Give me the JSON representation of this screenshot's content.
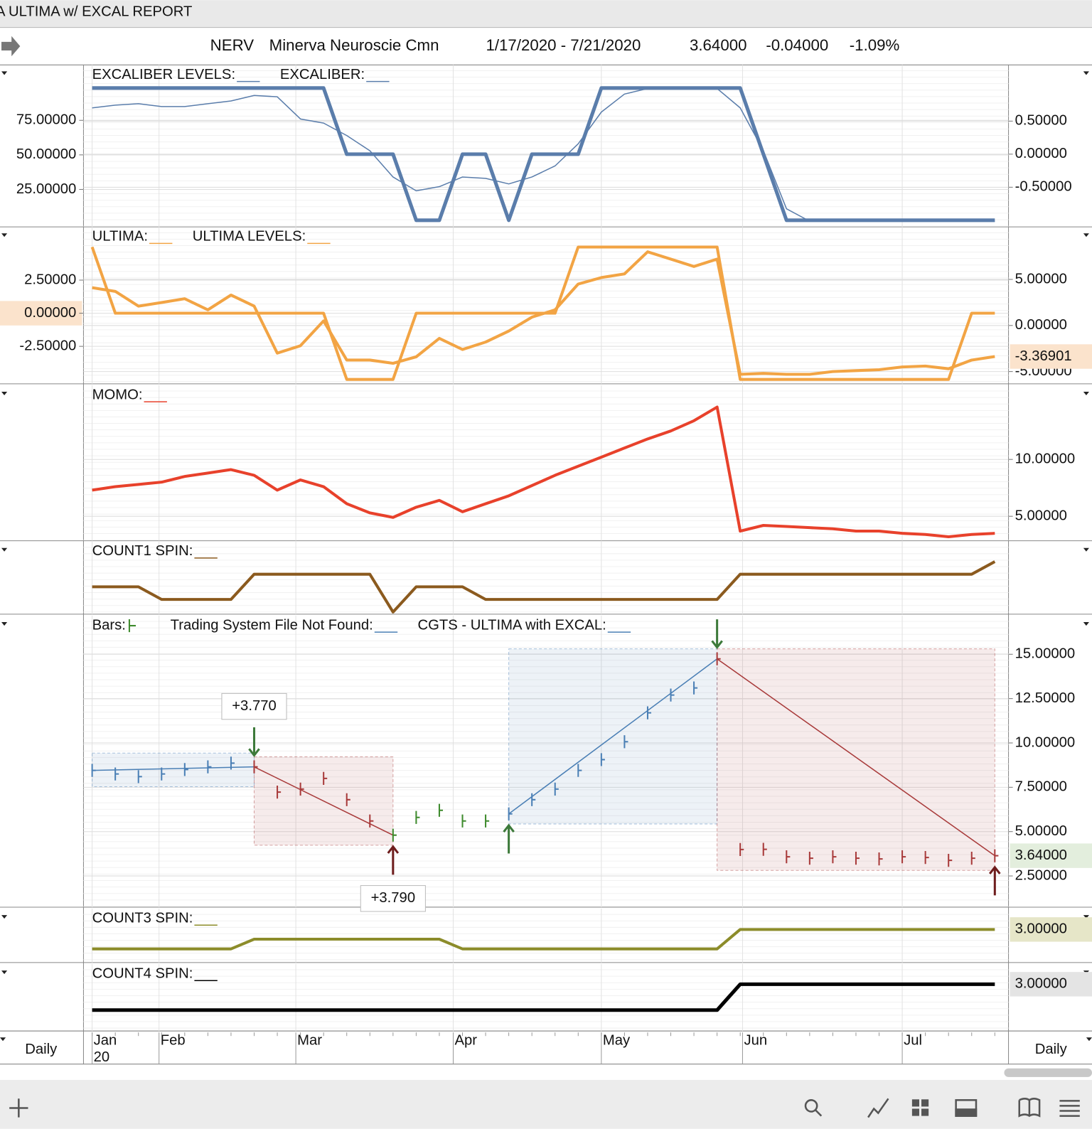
{
  "window": {
    "title": "A ULTIMA w/ EXCAL REPORT"
  },
  "header": {
    "symbol": "NERV",
    "name": "Minerva Neuroscie Cmn",
    "range": "1/17/2020 - 7/21/2020",
    "last": "3.64000",
    "change": "-0.04000",
    "pct_change": "-1.09%"
  },
  "x_axis": {
    "xlim": [
      0,
      39
    ],
    "ticks": [
      {
        "value": 0,
        "label": "Jan"
      },
      {
        "value": 2.89,
        "label": "Feb"
      },
      {
        "value": 8.8,
        "label": "Mar"
      },
      {
        "value": 15.6,
        "label": "Apr"
      },
      {
        "value": 22,
        "label": "May"
      },
      {
        "value": 28.1,
        "label": "Jun"
      },
      {
        "value": 35,
        "label": "Jul"
      }
    ],
    "year_label": "20",
    "period": "Daily"
  },
  "chart_data": [
    {
      "type": "line",
      "ylim": [
        -2.1,
        115.1
      ],
      "yticks": [
        {
          "value": 75,
          "label": "75.00000"
        },
        {
          "value": 50,
          "label": "50.00000"
        },
        {
          "value": 25,
          "label": "25.00000"
        }
      ],
      "y2lim": [
        -1.1,
        1.35
      ],
      "y2ticks": [
        {
          "value": 0.5,
          "label": "0.50000"
        },
        {
          "value": 0,
          "label": "0.00000"
        },
        {
          "value": -0.5,
          "label": "-0.50000"
        }
      ],
      "series": [
        {
          "name": "EXCALIBER LEVELS:",
          "color": "#5a7dab",
          "width": 5,
          "axis": "y2",
          "values": [
            1,
            1,
            1,
            1,
            1,
            1,
            1,
            1,
            1,
            1,
            1,
            0,
            0,
            0,
            -1,
            -1,
            0,
            0,
            -1,
            0,
            0,
            0,
            1,
            1,
            1,
            1,
            1,
            1,
            1,
            0,
            -1,
            -1,
            -1,
            -1,
            -1,
            -1,
            -1,
            -1,
            -1,
            -1
          ]
        },
        {
          "name": "EXCALIBER:",
          "color": "#5a7dab",
          "width": 1.5,
          "axis": "y",
          "values": [
            84,
            86,
            87,
            85,
            85,
            87,
            89,
            93,
            92,
            76,
            73,
            64,
            53,
            34,
            24,
            27,
            34,
            33,
            29,
            34,
            42,
            58,
            81,
            94,
            98,
            98,
            98,
            98,
            84,
            53,
            11,
            2,
            2,
            2,
            2,
            2,
            2,
            2,
            2,
            2
          ]
        }
      ]
    },
    {
      "type": "line",
      "ylim": [
        -5.33,
        6.52
      ],
      "yticks": [
        {
          "value": 2.5,
          "label": "2.50000"
        },
        {
          "value": 0,
          "label": "0.00000"
        },
        {
          "value": -2.5,
          "label": "-2.50000"
        }
      ],
      "ytick_highlight": {
        "index": 1,
        "color": "#fbe3cc"
      },
      "y2lim": [
        -6.33,
        10.7
      ],
      "y2ticks": [
        {
          "value": 5,
          "label": "5.00000"
        },
        {
          "value": 0,
          "label": "0.00000"
        },
        {
          "value": -5,
          "label": "-5.00000"
        }
      ],
      "series": [
        {
          "name": "ULTIMA:",
          "color": "#f2a444",
          "width": 4,
          "axis": "y2",
          "badge": "#fbe3cc",
          "values": [
            4.1,
            3.7,
            2.1,
            2.5,
            2.9,
            1.7,
            3.3,
            2.1,
            -3.0,
            -2.2,
            0.5,
            -3.75,
            -3.75,
            -4.1,
            -3.4,
            -1.4,
            -2.6,
            -1.8,
            -0.6,
            0.9,
            1.7,
            4.5,
            5.2,
            5.6,
            8.0,
            7.2,
            6.4,
            7.2,
            -5.3,
            -5.2,
            -5.3,
            -5.3,
            -5.0,
            -4.9,
            -4.8,
            -4.5,
            -4.4,
            -4.7,
            -3.75,
            -3.36901
          ]
        },
        {
          "name": "ULTIMA LEVELS:",
          "color": "#f2a444",
          "width": 4,
          "axis": "y",
          "values": [
            5,
            0,
            0,
            0,
            0,
            0,
            0,
            0,
            0,
            0,
            0,
            -5,
            -5,
            -5,
            0,
            0,
            0,
            0,
            0,
            0,
            0,
            5,
            5,
            5,
            5,
            5,
            5,
            5,
            -5,
            -5,
            -5,
            -5,
            -5,
            -5,
            -5,
            -5,
            -5,
            -5,
            0,
            0
          ]
        }
      ]
    },
    {
      "type": "line",
      "y2lim": [
        2.85,
        16.52
      ],
      "y2ticks": [
        {
          "value": 10,
          "label": "10.00000"
        },
        {
          "value": 5,
          "label": "5.00000"
        }
      ],
      "series": [
        {
          "name": "MOMO:",
          "color": "#e8412b",
          "width": 4,
          "axis": "y2",
          "values": [
            7.3,
            7.6,
            7.8,
            8.0,
            8.5,
            8.8,
            9.1,
            8.6,
            7.3,
            8.2,
            7.6,
            6.1,
            5.3,
            4.9,
            5.8,
            6.4,
            5.4,
            6.1,
            6.8,
            7.7,
            8.6,
            9.4,
            10.2,
            11.0,
            11.8,
            12.5,
            13.4,
            14.6,
            3.7,
            4.2,
            4.1,
            4.0,
            3.9,
            3.7,
            3.7,
            3.5,
            3.4,
            3.2,
            3.4,
            3.5
          ]
        }
      ]
    },
    {
      "type": "line",
      "ylim": [
        -0.17,
        5.6
      ],
      "series": [
        {
          "name": "COUNT1 SPIN:",
          "color": "#8b5a1e",
          "width": 4,
          "axis": "y",
          "values": [
            2,
            2,
            2,
            1,
            1,
            1,
            1,
            3,
            3,
            3,
            3,
            3,
            3,
            0,
            2,
            2,
            2,
            1,
            1,
            1,
            1,
            1,
            1,
            1,
            1,
            1,
            1,
            1,
            3,
            3,
            3,
            3,
            3,
            3,
            3,
            3,
            3,
            3,
            3,
            4
          ]
        }
      ]
    },
    {
      "type": "price-bars",
      "y2lim": [
        0.74,
        17.18
      ],
      "y2ticks": [
        {
          "value": 15,
          "label": "15.00000"
        },
        {
          "value": 12.5,
          "label": "12.50000"
        },
        {
          "value": 10,
          "label": "10.00000"
        },
        {
          "value": 7.5,
          "label": "7.50000"
        },
        {
          "value": 5,
          "label": "5.00000"
        },
        {
          "value": 2.5,
          "label": "2.50000"
        }
      ],
      "bar_color": "#3d8a2c",
      "series": [
        {
          "name": "Bars:",
          "color": "#3d8a2c",
          "axis": "y2",
          "badge": "#e3eedd",
          "values": [
            8.45,
            8.25,
            8.1,
            8.25,
            8.5,
            8.65,
            8.86,
            8.65,
            7.23,
            7.4,
            8.0,
            6.8,
            5.6,
            4.8,
            5.8,
            6.2,
            5.6,
            5.6,
            6.0,
            6.8,
            7.4,
            8.45,
            9.06,
            10.07,
            11.7,
            12.7,
            13.1,
            14.74,
            3.99,
            4.0,
            3.58,
            3.5,
            3.58,
            3.5,
            3.46,
            3.58,
            3.54,
            3.38,
            3.5,
            3.64
          ],
          "value_labels": [
            null,
            null,
            null,
            null,
            null,
            null,
            null,
            null,
            null,
            null,
            null,
            null,
            null,
            null,
            null,
            null,
            null,
            null,
            null,
            null,
            null,
            null,
            null,
            null,
            null,
            null,
            null,
            null,
            null,
            null,
            null,
            null,
            null,
            null,
            null,
            null,
            null,
            null,
            null,
            "3.64000"
          ]
        }
      ],
      "legend_labels": [
        {
          "name": "Trading System File Not Found:",
          "color": "#4a7fb5"
        },
        {
          "name": "CGTS - ULTIMA with EXCAL:",
          "color": "#4a7fb5"
        }
      ],
      "trades": [
        {
          "from": 0,
          "to": 7,
          "color": "#4a7fb5"
        },
        {
          "from": 7,
          "to": 13,
          "color": "#a83a3a"
        },
        {
          "from": 18,
          "to": 27,
          "color": "#4a7fb5"
        },
        {
          "from": 27,
          "to": 39,
          "color": "#a83a3a"
        }
      ],
      "signals": [
        {
          "at": 7,
          "dir": "down",
          "color": "#3d7a3a",
          "label": "+3.770"
        },
        {
          "at": 13,
          "dir": "up",
          "color": "#6e1d1d",
          "label": "+3.790"
        },
        {
          "at": 18,
          "dir": "up",
          "color": "#3d7a3a"
        },
        {
          "at": 27,
          "dir": "down",
          "color": "#3d7a3a"
        },
        {
          "at": 39,
          "dir": "up",
          "color": "#6e1d1d"
        }
      ]
    },
    {
      "type": "line",
      "ylim": [
        -0.41,
        5.15
      ],
      "series": [
        {
          "name": "COUNT3 SPIN:",
          "color": "#8c8c2a",
          "width": 4,
          "axis": "y",
          "badge": "#e6e6c8",
          "values": [
            1,
            1,
            1,
            1,
            1,
            1,
            1,
            2,
            2,
            2,
            2,
            2,
            2,
            2,
            2,
            2,
            1,
            1,
            1,
            1,
            1,
            1,
            1,
            1,
            1,
            1,
            1,
            1,
            3,
            3,
            3,
            3,
            3,
            3,
            3,
            3,
            3,
            3,
            3,
            3
          ],
          "value_labels": [
            null,
            null,
            null,
            null,
            null,
            null,
            null,
            null,
            null,
            null,
            null,
            null,
            null,
            null,
            null,
            null,
            null,
            null,
            null,
            null,
            null,
            null,
            null,
            null,
            null,
            null,
            null,
            null,
            null,
            null,
            null,
            null,
            null,
            null,
            null,
            null,
            null,
            null,
            null,
            "3.00000"
          ]
        }
      ]
    },
    {
      "type": "line",
      "ylim": [
        -0.61,
        4.56
      ],
      "series": [
        {
          "name": "COUNT4 SPIN:",
          "color": "#000000",
          "width": 5,
          "axis": "y",
          "badge": "#e4e4e4",
          "values": [
            1,
            1,
            1,
            1,
            1,
            1,
            1,
            1,
            1,
            1,
            1,
            1,
            1,
            1,
            1,
            1,
            1,
            1,
            1,
            1,
            1,
            1,
            1,
            1,
            1,
            1,
            1,
            1,
            3,
            3,
            3,
            3,
            3,
            3,
            3,
            3,
            3,
            3,
            3,
            3
          ],
          "value_labels": [
            null,
            null,
            null,
            null,
            null,
            null,
            null,
            null,
            null,
            null,
            null,
            null,
            null,
            null,
            null,
            null,
            null,
            null,
            null,
            null,
            null,
            null,
            null,
            null,
            null,
            null,
            null,
            null,
            null,
            null,
            null,
            null,
            null,
            null,
            null,
            null,
            null,
            null,
            null,
            "3.00000"
          ]
        }
      ]
    }
  ]
}
